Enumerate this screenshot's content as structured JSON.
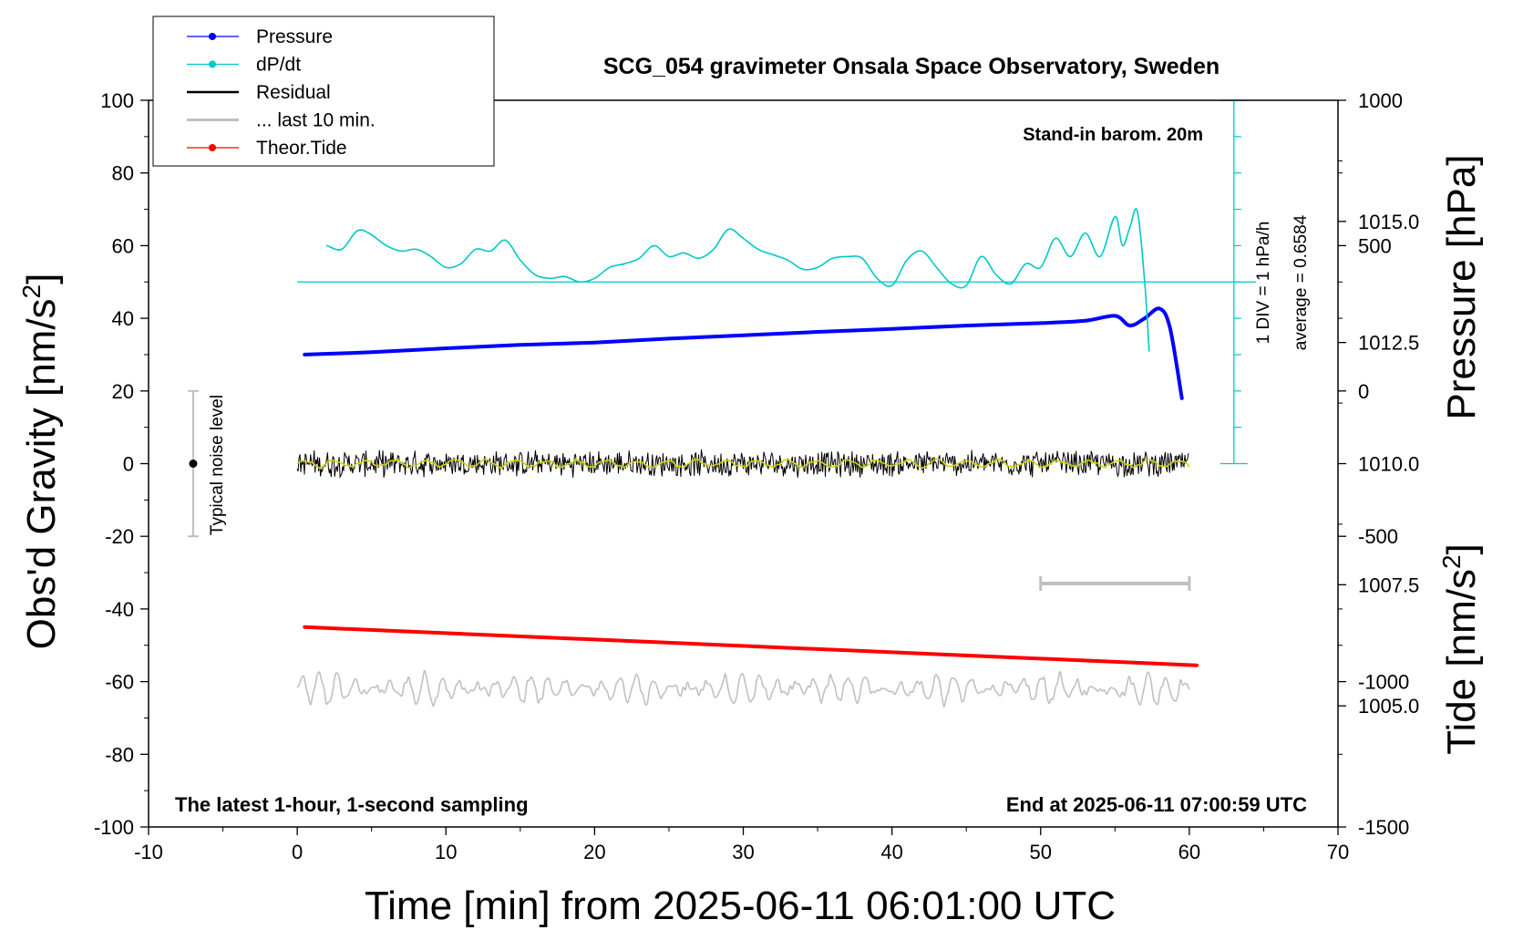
{
  "chart_data": {
    "type": "line",
    "title": "SCG_054 gravimeter Onsala Space Observatory, Sweden",
    "xlabel": "Time [min] from 2025-06-11 06:01:00 UTC",
    "ylabel_left": "Obs'd Gravity [nm/s",
    "ylabel_left_sup": "2",
    "ylabel_left_close": "]",
    "ylabel_right_pressure": "Pressure [hPa]",
    "ylabel_right_tide": "Tide [nm/s",
    "ylabel_right_tide_sup": "2",
    "ylabel_right_tide_close": "]",
    "xlim": [
      -10,
      70
    ],
    "ylim_left": [
      -100,
      100
    ],
    "x_ticks": [
      "-10",
      "0",
      "10",
      "20",
      "30",
      "40",
      "50",
      "60",
      "70"
    ],
    "y_ticks_left": [
      "100",
      "80",
      "60",
      "40",
      "20",
      "0",
      "-20",
      "-40",
      "-60",
      "-80",
      "-100"
    ],
    "pressure_ticks": [
      "1015.0",
      "1012.5",
      "1010.0",
      "1007.5",
      "1005.0"
    ],
    "pressure_tick_values": [
      1015.0,
      1012.5,
      1010.0,
      1007.5,
      1005.0
    ],
    "pressure_range": [
      1002.5,
      1017.5
    ],
    "tide_ticks": [
      "1000",
      "500",
      "0",
      "-500",
      "-1000",
      "-1500"
    ],
    "tide_tick_values": [
      1000,
      500,
      0,
      -500,
      -1000,
      -1500
    ],
    "tide_range": [
      -1500,
      1000
    ],
    "legend": {
      "placement": "top-left",
      "entries": [
        {
          "label": "Pressure",
          "color": "#0000ff",
          "marker": true
        },
        {
          "label": "dP/dt",
          "color": "#00c8c8",
          "marker": true
        },
        {
          "label": "Residual",
          "color": "#000000",
          "marker": false
        },
        {
          "label": "... last 10 min.",
          "color": "#c0c0c0",
          "marker": false
        },
        {
          "label": "Theor.Tide",
          "color": "#ff0000",
          "marker": true
        }
      ]
    },
    "annotations": {
      "stand_in": "Stand-in barom. 20m",
      "div_label": "1 DIV = 1 hPa/h",
      "average_label": "average = 0.6584",
      "noise_label": "Typical noise level",
      "bottom_left": "The latest 1-hour, 1-second sampling",
      "bottom_right": "End at 2025-06-11 07:00:59 UTC"
    },
    "series": [
      {
        "name": "Pressure",
        "axis": "pressure_hPa",
        "color": "#0000ff",
        "x": [
          0.5,
          5,
          10,
          15,
          20,
          25,
          30,
          35,
          40,
          45,
          50,
          53,
          55,
          56,
          57,
          58,
          58.7,
          59.5
        ],
        "y": [
          1012.25,
          1012.3,
          1012.38,
          1012.45,
          1012.5,
          1012.58,
          1012.65,
          1012.72,
          1012.78,
          1012.85,
          1012.9,
          1012.95,
          1013.05,
          1012.85,
          1013.0,
          1013.2,
          1012.8,
          1011.35
        ]
      },
      {
        "name": "dP/dt",
        "axis": "left",
        "color": "#00c8c8",
        "x": [
          2,
          3,
          4,
          4.8,
          6,
          7,
          8,
          9,
          10,
          11,
          12,
          13,
          14,
          15,
          16,
          17,
          18,
          19,
          20,
          21,
          22,
          23,
          24,
          25,
          26,
          27,
          28,
          29,
          30,
          31,
          32,
          33,
          34,
          35,
          36,
          37,
          38,
          39,
          40,
          41,
          42,
          43,
          44,
          45,
          46,
          47,
          48,
          49,
          50,
          51,
          52,
          53,
          54,
          55,
          55.5,
          56,
          56.5,
          57,
          57.3
        ],
        "y": [
          60,
          59,
          64,
          63.5,
          60,
          58.5,
          59,
          57,
          54,
          55,
          59,
          58.5,
          61.5,
          56,
          52,
          51,
          51.5,
          50,
          51,
          54,
          55,
          56.5,
          60,
          57,
          58,
          56.5,
          59,
          64.5,
          62,
          59,
          57.5,
          56,
          53.5,
          54,
          56.5,
          57,
          56.5,
          51,
          49,
          56,
          58.5,
          54,
          49.5,
          49,
          57,
          52,
          49.5,
          55,
          54,
          62,
          57,
          63.5,
          57,
          68,
          60,
          65,
          69.5,
          50,
          31
        ]
      },
      {
        "name": "Theor.Tide",
        "axis": "left",
        "color": "#ff0000",
        "x": [
          0.5,
          60.5
        ],
        "y": [
          -45,
          -55.5
        ]
      }
    ],
    "residual": {
      "x_start": 0,
      "x_end": 60,
      "mean": 0,
      "amplitude": 4,
      "color": "#000000",
      "smooth_color": "#d2d200"
    },
    "last_10_min": {
      "x_start": 0,
      "x_end": 60,
      "offset": -62,
      "amplitude": 4,
      "color": "#c0c0c0"
    },
    "noise_bar": {
      "x": -7,
      "y_center": 0,
      "y_half": 20,
      "color": "#bfbfbf"
    },
    "scale_bar": {
      "x_start": 50,
      "x_end": 60,
      "y": -33,
      "color": "#c0c0c0"
    },
    "dpdt_reference_y": 50,
    "div_axis": {
      "x": 63,
      "y_top": 100,
      "y_bottom": 0,
      "tick_step": 10,
      "color": "#00c8c8"
    }
  }
}
